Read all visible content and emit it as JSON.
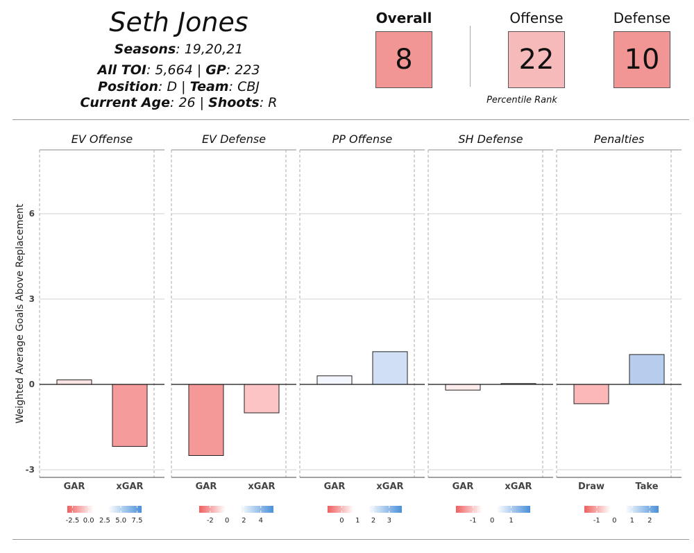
{
  "player": {
    "name": "Seth Jones",
    "seasons_label": "Seasons",
    "seasons": "19,20,21",
    "toi_label": "All TOI",
    "toi": "5,664",
    "gp_label": "GP",
    "gp": "223",
    "position_label": "Position",
    "position": "D",
    "team_label": "Team",
    "team": "CBJ",
    "age_label": "Current Age",
    "age": "26",
    "shoots_label": "Shoots",
    "shoots": "R"
  },
  "ranks": {
    "overall_label": "Overall",
    "overall": "8",
    "offense_label": "Offense",
    "offense": "22",
    "defense_label": "Defense",
    "defense": "10",
    "caption": "Percentile Rank",
    "colors": {
      "overall": "#f19595",
      "offense": "#f7baba",
      "defense": "#f19595"
    }
  },
  "chart_data": {
    "type": "bar",
    "ylabel": "Weighted Average Goals Above Replacement",
    "ylim": [
      -3.3,
      8.2
    ],
    "yticks": [
      -3,
      0,
      3,
      6
    ],
    "grid": true,
    "panels": [
      {
        "title": "EV Offense",
        "categories": [
          "GAR",
          "xGAR"
        ],
        "values": [
          0.16,
          -2.18
        ],
        "colors": [
          "#fde4e4",
          "#f59b9b"
        ],
        "legend_ticks": [
          "-2.5",
          "0.0",
          "2.5",
          "5.0",
          "7.5"
        ],
        "legend_range": [
          -3.3,
          8.2
        ]
      },
      {
        "title": "EV Defense",
        "categories": [
          "GAR",
          "xGAR"
        ],
        "values": [
          -2.5,
          -1.0
        ],
        "colors": [
          "#f59898",
          "#fcc4c4"
        ],
        "legend_ticks": [
          "-2",
          "0",
          "2",
          "4"
        ],
        "legend_range": [
          -3.3,
          5.5
        ]
      },
      {
        "title": "PP Offense",
        "categories": [
          "GAR",
          "xGAR"
        ],
        "values": [
          0.3,
          1.15
        ],
        "colors": [
          "#f3f6fd",
          "#d1dff5"
        ],
        "legend_ticks": [
          "0",
          "1",
          "2",
          "3"
        ],
        "legend_range": [
          -0.9,
          3.8
        ]
      },
      {
        "title": "SH Defense",
        "categories": [
          "GAR",
          "xGAR"
        ],
        "values": [
          -0.2,
          0.03
        ],
        "colors": [
          "#fdecec",
          "#fafafa"
        ],
        "legend_ticks": [
          "-1",
          "0",
          "1"
        ],
        "legend_range": [
          -1.9,
          2.0
        ]
      },
      {
        "title": "Penalties",
        "categories": [
          "Draw",
          "Take"
        ],
        "values": [
          -0.68,
          1.05
        ],
        "colors": [
          "#fcb8b8",
          "#b7cdee"
        ],
        "legend_ticks": [
          "-1",
          "0",
          "1",
          "2"
        ],
        "legend_range": [
          -1.7,
          2.5
        ]
      }
    ]
  }
}
